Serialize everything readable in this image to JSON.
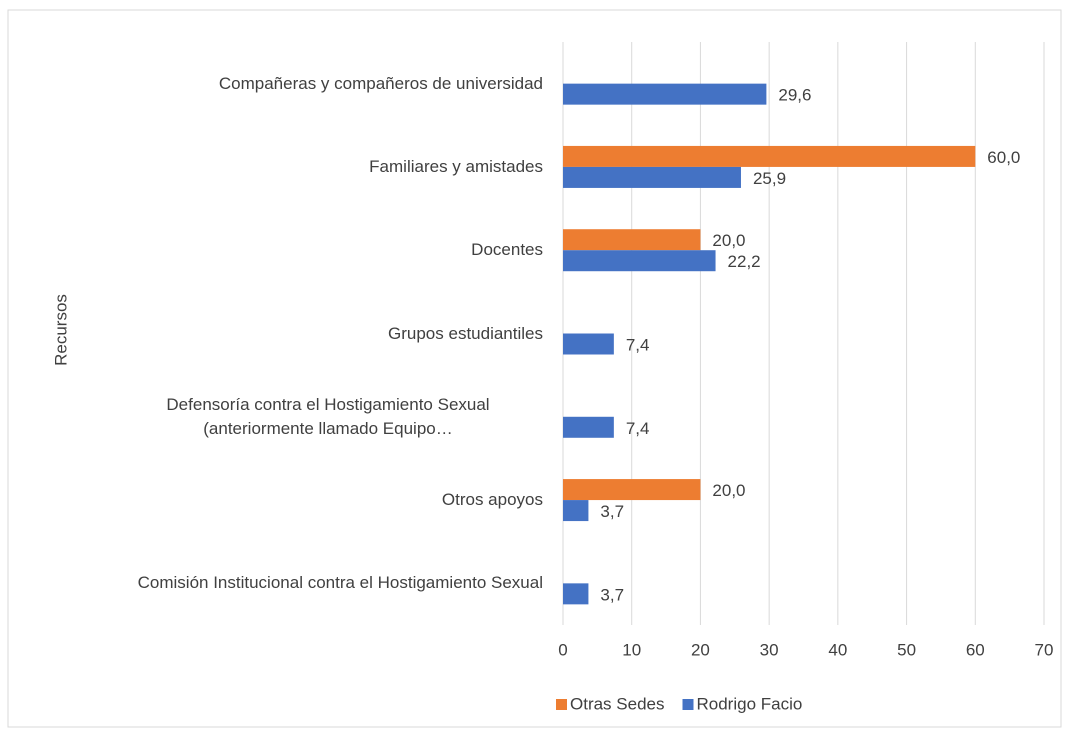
{
  "chart_data": {
    "type": "hbar",
    "y_label": "Recursos",
    "categories": [
      "Compañeras y compañeros de universidad",
      "Familiares y amistades",
      "Docentes",
      "Grupos estudiantiles",
      "Defensoría contra el Hostigamiento Sexual (anteriormente llamado Equipo…",
      "Otros apoyos",
      "Comisión Institucional contra el Hostigamiento Sexual"
    ],
    "series": [
      {
        "name": "Otras Sedes",
        "color": "#ed7d31",
        "values": [
          null,
          60.0,
          20.0,
          null,
          null,
          20.0,
          null
        ],
        "value_labels": [
          null,
          "60,0",
          "20,0",
          null,
          null,
          "20,0",
          null
        ]
      },
      {
        "name": "Rodrigo Facio",
        "color": "#4472c4",
        "values": [
          29.6,
          25.9,
          22.2,
          7.4,
          7.4,
          3.7,
          3.7
        ],
        "value_labels": [
          "29,6",
          "25,9",
          "22,2",
          "7,4",
          "7,4",
          "3,7",
          "3,7"
        ]
      }
    ],
    "xlim": [
      0,
      70
    ],
    "xticks": [
      0,
      10,
      20,
      30,
      40,
      50,
      60,
      70
    ],
    "grid": true,
    "legend": "bottom"
  }
}
